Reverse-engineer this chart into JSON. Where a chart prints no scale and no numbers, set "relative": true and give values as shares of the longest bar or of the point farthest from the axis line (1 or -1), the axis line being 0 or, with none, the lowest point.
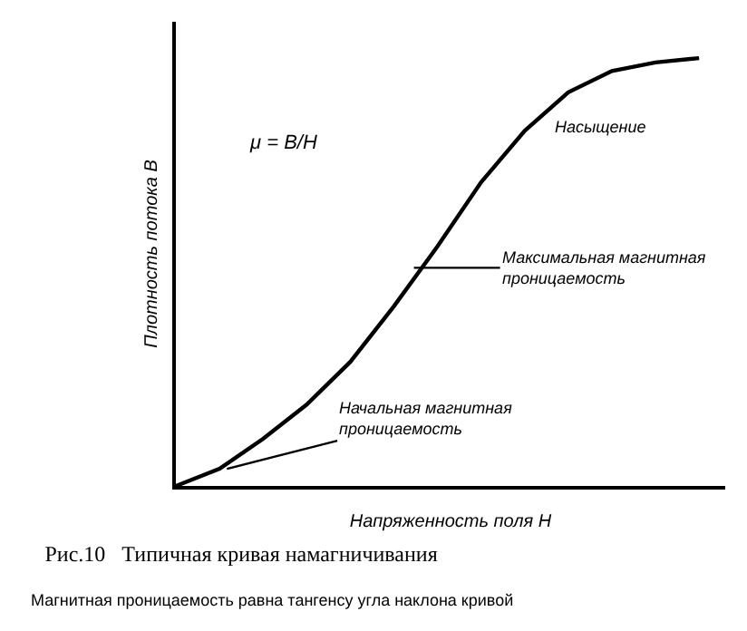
{
  "chart_data": {
    "type": "line",
    "relative": true,
    "title": "Рис.10   Типичная кривая намагничивания",
    "subtitle": "Магнитная проницаемость равна тангенсу угла наклона кривой",
    "xlabel": "Напряженность поля H",
    "ylabel": "Плотность потока B",
    "categories": [
      null,
      null,
      null,
      null,
      null,
      null,
      null,
      null,
      null,
      null,
      null,
      null,
      null
    ],
    "series": [
      {
        "color": "#000000",
        "values": [
          0,
          0.04,
          0.11,
          0.19,
          0.29,
          0.42,
          0.56,
          0.71,
          0.83,
          0.92,
          0.97,
          0.99,
          1.0
        ]
      }
    ],
    "annotations": [
      "μ = B/H",
      "Насыщение",
      "Максимальная магнитная\nпроницаемость",
      "Начальная магнитная\nпроницаемость"
    ],
    "marker": "none",
    "line_style": "solid"
  }
}
